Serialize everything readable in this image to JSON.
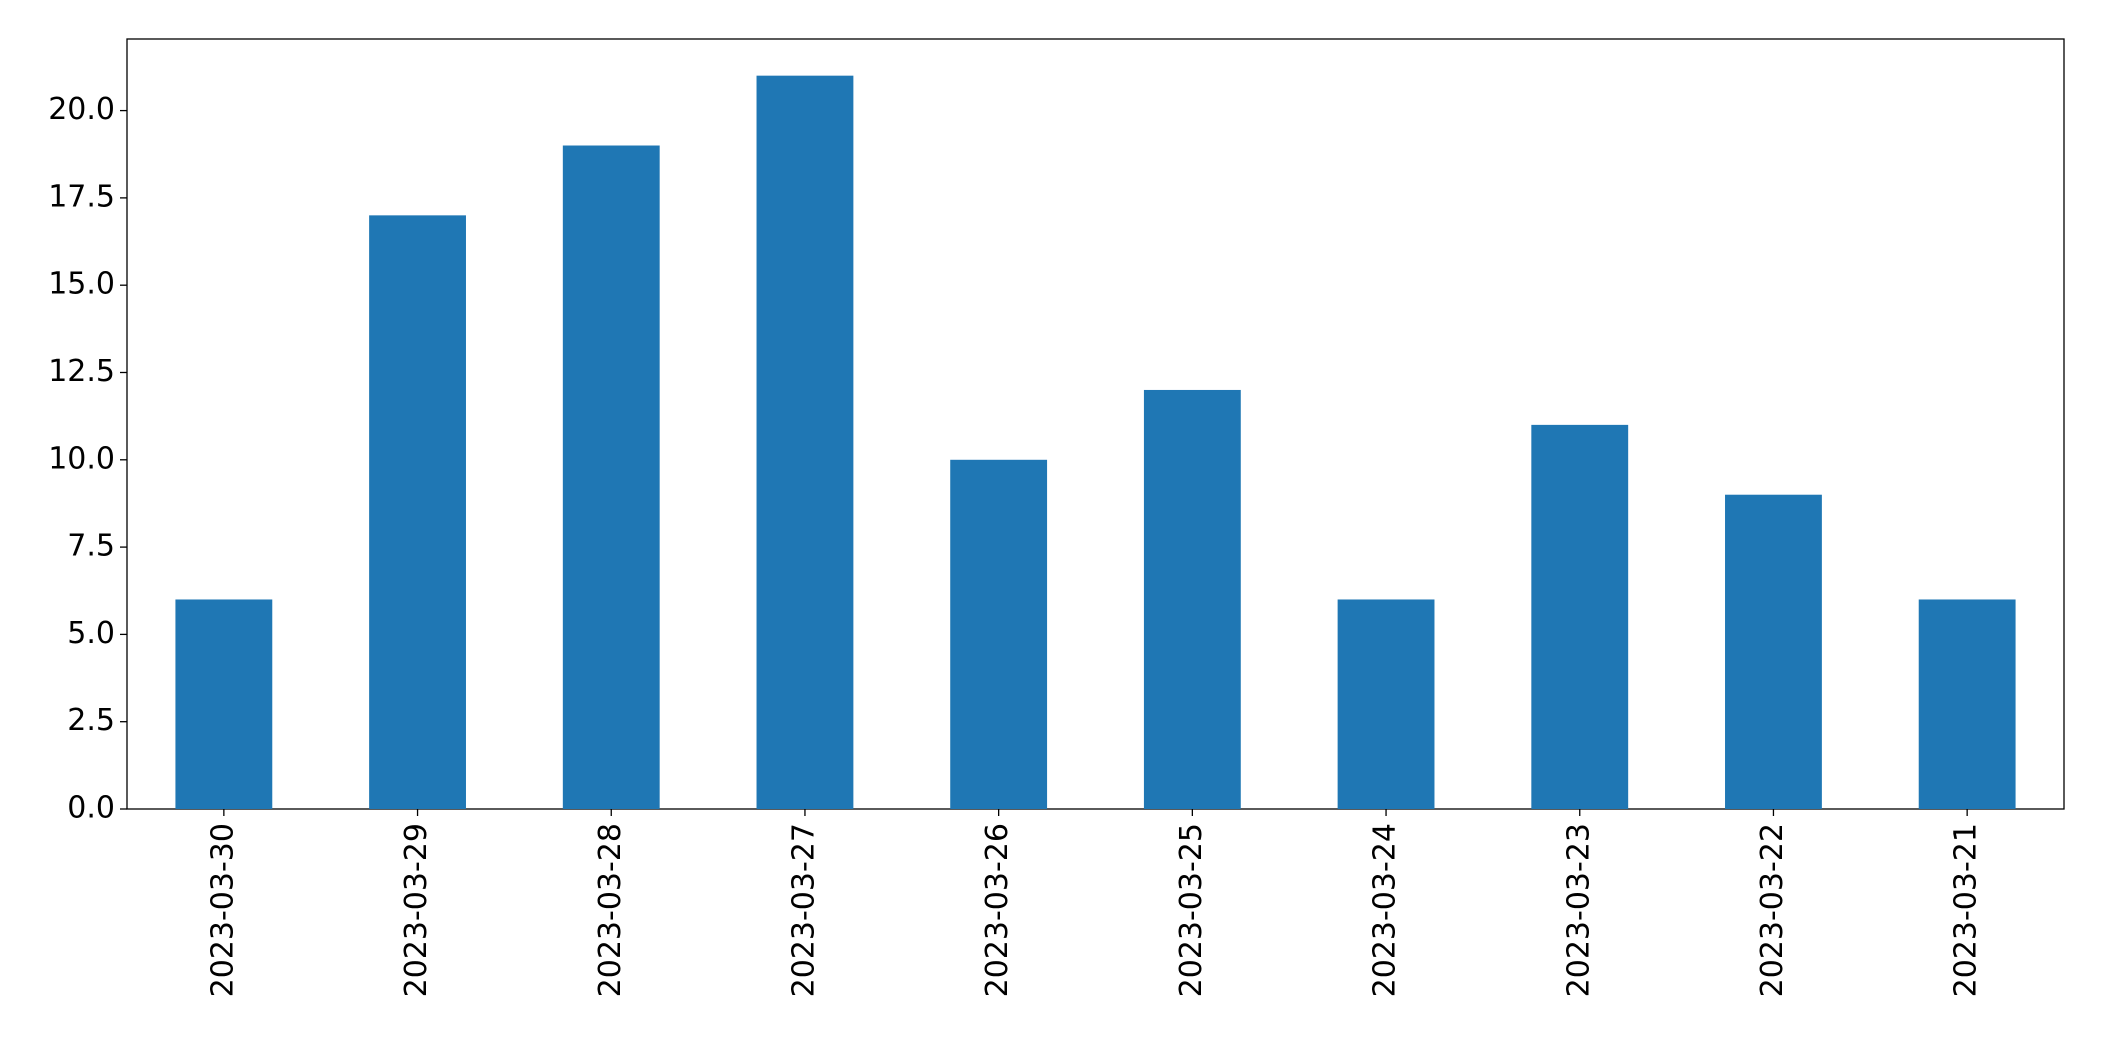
{
  "chart_data": {
    "type": "bar",
    "categories": [
      "2023-03-30",
      "2023-03-29",
      "2023-03-28",
      "2023-03-27",
      "2023-03-26",
      "2023-03-25",
      "2023-03-24",
      "2023-03-23",
      "2023-03-22",
      "2023-03-21"
    ],
    "values": [
      6,
      17,
      19,
      21,
      10,
      12,
      6,
      11,
      9,
      6
    ],
    "color": "#1f77b4",
    "ylim": [
      0,
      22.05
    ],
    "yticks": [
      {
        "value": 0,
        "label": "0.0"
      },
      {
        "value": 2.5,
        "label": "2.5"
      },
      {
        "value": 5,
        "label": "5.0"
      },
      {
        "value": 7.5,
        "label": "7.5"
      },
      {
        "value": 10,
        "label": "10.0"
      },
      {
        "value": 12.5,
        "label": "12.5"
      },
      {
        "value": 15,
        "label": "15.0"
      },
      {
        "value": 17.5,
        "label": "17.5"
      },
      {
        "value": 20,
        "label": "20.0"
      }
    ],
    "grid": false
  }
}
